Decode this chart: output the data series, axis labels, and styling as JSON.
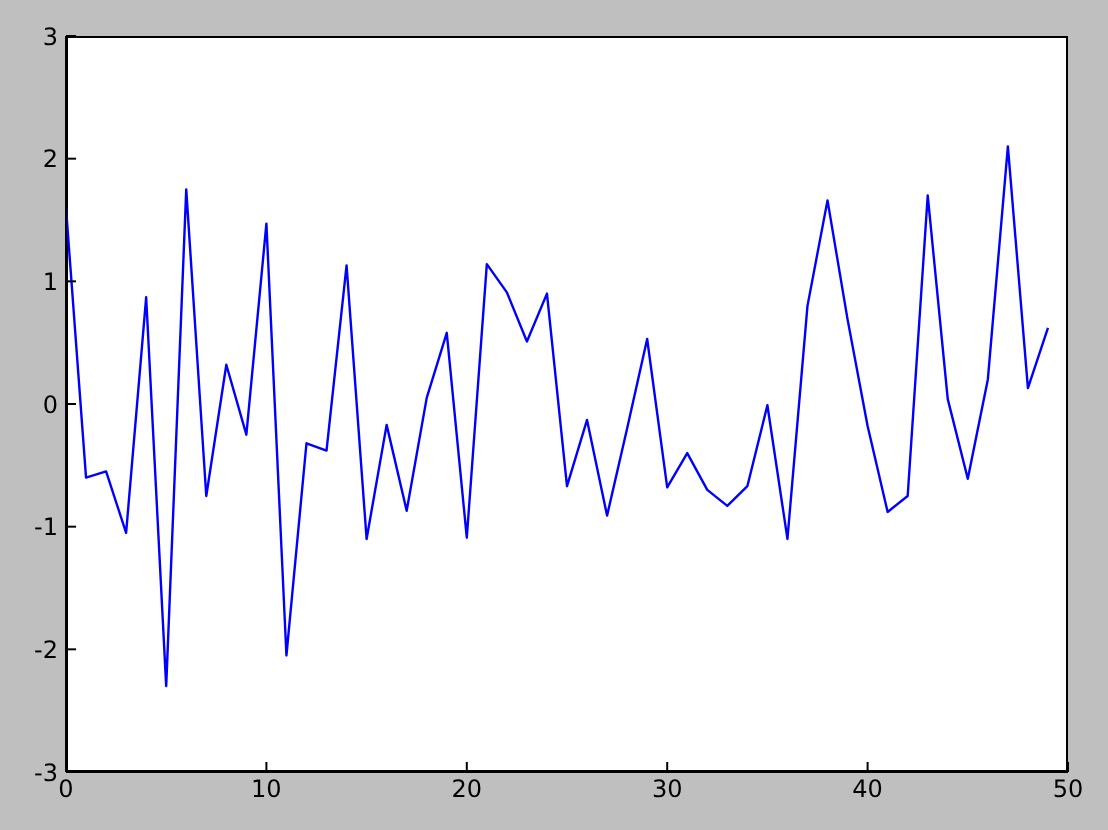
{
  "chart_data": {
    "type": "line",
    "x": [
      0,
      1,
      2,
      3,
      4,
      5,
      6,
      7,
      8,
      9,
      10,
      11,
      12,
      13,
      14,
      15,
      16,
      17,
      18,
      19,
      20,
      21,
      22,
      23,
      24,
      25,
      26,
      27,
      28,
      29,
      30,
      31,
      32,
      33,
      34,
      35,
      36,
      37,
      38,
      39,
      40,
      41,
      42,
      43,
      44,
      45,
      46,
      47,
      48,
      49
    ],
    "series": [
      {
        "color": "#0000ff",
        "values": [
          1.6,
          -0.6,
          -0.55,
          -1.05,
          0.87,
          -2.3,
          1.75,
          -0.75,
          0.32,
          -0.25,
          1.47,
          -2.05,
          -0.32,
          -0.38,
          1.13,
          -1.1,
          -0.17,
          -0.87,
          0.05,
          0.58,
          -1.09,
          1.14,
          0.91,
          0.51,
          0.9,
          -0.67,
          -0.13,
          -0.91,
          -0.2,
          0.53,
          -0.68,
          -0.4,
          -0.7,
          -0.83,
          -0.67,
          -0.01,
          -1.1,
          0.8,
          1.66,
          0.69,
          -0.18,
          -0.88,
          -0.75,
          1.7,
          0.04,
          -0.61,
          0.2,
          2.1,
          0.13,
          0.62
        ]
      }
    ],
    "xlim": [
      0,
      50
    ],
    "xticks": [
      0,
      10,
      20,
      30,
      40,
      50
    ],
    "ylim": [
      -3,
      3
    ],
    "yticks": [
      -3,
      -2,
      -1,
      0,
      1,
      2,
      3
    ],
    "marker": "none",
    "line_style": "solid"
  }
}
